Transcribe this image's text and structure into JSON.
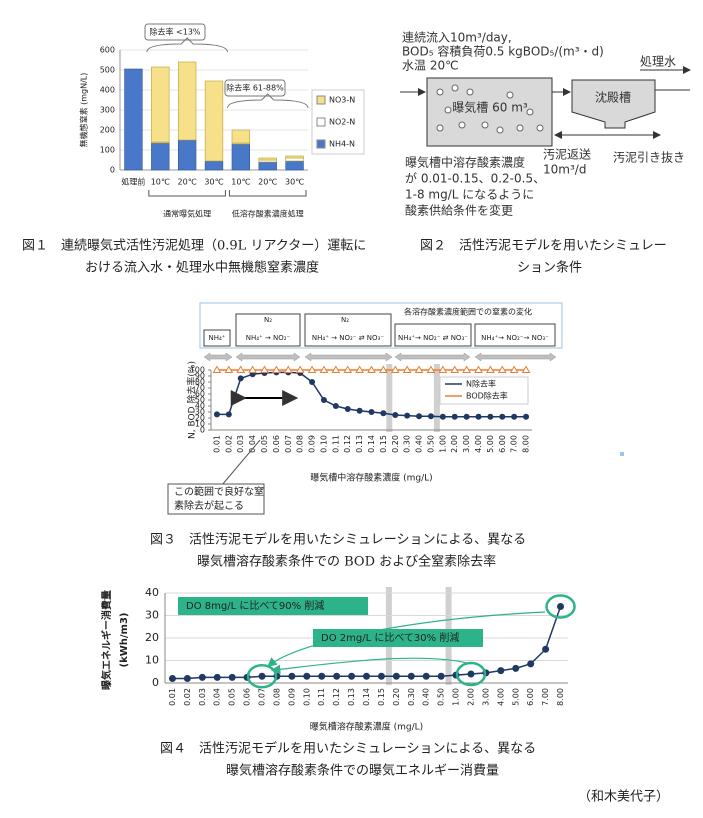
{
  "chart_data": [
    {
      "type": "bar",
      "stacked": true,
      "y_label": "無機態窒素 (mgN/L)",
      "categories": [
        "処理前",
        "10℃",
        "20℃",
        "30℃",
        "10℃",
        "20℃",
        "30℃"
      ],
      "group_labels": [
        "通常曝気処理",
        "低溶存酸素濃度処理"
      ],
      "annotations": [
        "除去率 <13%",
        "除去率 61-88%"
      ],
      "series": [
        {
          "name": "NH4-N",
          "color": "#4a78c8",
          "values": [
            505,
            135,
            150,
            45,
            130,
            40,
            45
          ]
        },
        {
          "name": "NO2-N",
          "color": "#ffffff",
          "values": [
            0,
            5,
            0,
            0,
            5,
            10,
            15
          ]
        },
        {
          "name": "NO3-N",
          "color": "#f6e08a",
          "values": [
            0,
            375,
            390,
            400,
            65,
            10,
            10
          ]
        }
      ],
      "ylim": [
        0,
        600
      ],
      "yticks": [
        0,
        100,
        200,
        300,
        400,
        500,
        600
      ]
    },
    {
      "type": "line",
      "y_label": "N, BOD 除去率(%)",
      "x_label": "曝気槽中溶存酸素濃度 (mg/L)",
      "categories": [
        "0.01",
        "0.02",
        "0.03",
        "0.04",
        "0.05",
        "0.06",
        "0.07",
        "0.08",
        "0.09",
        "0.10",
        "0.11",
        "0.12",
        "0.13",
        "0.14",
        "0.15",
        "0.20",
        "0.30",
        "0.40",
        "0.50",
        "1.00",
        "2.00",
        "3.00",
        "4.00",
        "5.00",
        "6.00",
        "7.00",
        "8.00"
      ],
      "series": [
        {
          "name": "N除去率",
          "color": "#1f3864",
          "marker": "circle",
          "values": [
            26,
            26,
            86,
            93,
            95,
            96,
            96,
            95,
            80,
            50,
            40,
            35,
            32,
            30,
            28,
            25,
            24,
            23,
            23,
            22,
            22,
            22,
            22,
            22,
            22,
            22,
            22
          ]
        },
        {
          "name": "BOD除去率",
          "color": "#ed7d31",
          "marker": "triangle",
          "values": [
            100,
            100,
            100,
            100,
            100,
            100,
            100,
            100,
            100,
            100,
            100,
            100,
            100,
            100,
            100,
            100,
            100,
            100,
            100,
            100,
            100,
            100,
            100,
            100,
            100,
            100,
            100
          ]
        }
      ],
      "ylim": [
        0,
        100
      ],
      "yticks": [
        0,
        10,
        20,
        30,
        40,
        50,
        60,
        70,
        80,
        90,
        100
      ],
      "annotation": [
        "この範囲で良好な窒",
        "素除去が起こる"
      ],
      "header": {
        "title": "各溶存酸素濃度範囲での窒素の変化",
        "boxes": [
          "NH₄⁺",
          "NH₄⁺ → NO₂⁻",
          "NH₄⁺ → NO₂⁻ ⇄ NO₃⁻",
          "NH₄⁺→ NO₂⁻ ⇄ NO₃⁻",
          "NH₄⁺→ NO₂⁻→ NO₃⁻"
        ],
        "n2": "N₂"
      }
    },
    {
      "type": "line",
      "y_label": "曝気エネルギー消費量",
      "y_unit": "(kWh/m3)",
      "x_label": "曝気槽溶存酸素濃度 (mg/L)",
      "categories": [
        "0.01",
        "0.02",
        "0.03",
        "0.04",
        "0.05",
        "0.06",
        "0.07",
        "0.08",
        "0.09",
        "0.10",
        "0.11",
        "0.12",
        "0.13",
        "0.14",
        "0.15",
        "0.20",
        "0.30",
        "0.40",
        "0.50",
        "1.00",
        "2.00",
        "3.00",
        "4.00",
        "5.00",
        "6.00",
        "7.00",
        "8.00"
      ],
      "series": [
        {
          "color": "#1f3864",
          "marker": "circle",
          "values": [
            2,
            2,
            2.5,
            2.5,
            2.5,
            2.5,
            3,
            3,
            3,
            3,
            3,
            3,
            3,
            3,
            3,
            3,
            3,
            3,
            3,
            3.5,
            4,
            4.5,
            5.5,
            6.5,
            8.5,
            15,
            34
          ]
        }
      ],
      "ylim": [
        0,
        40
      ],
      "yticks": [
        0,
        10,
        20,
        30,
        40
      ],
      "annotations": [
        "DO 8mg/L に比べて90% 削減",
        "DO 2mg/L に比べて30% 削減"
      ]
    }
  ],
  "figure2": {
    "lines": [
      "連続流入10m³/day,",
      "BOD₅ 容積負荷0.5 kgBOD₅/(m³・d)",
      "水温 20℃"
    ],
    "effluent": "処理水",
    "tank": "曝気槽 60 m³",
    "clarifier": "沈殿槽",
    "return": "汚泥返送",
    "return_rate": "10m³/d",
    "waste": "汚泥引き抜き",
    "note": [
      "曝気槽中溶存酸素濃度",
      "が 0.01-0.15、0.2-0.5、",
      "1-8 mg/L になるように",
      "酸素供給条件を変更"
    ]
  },
  "captions": {
    "fig1": [
      "図１　連続曝気式活性汚泥処理（0.9L リアクター）運転に",
      "おける流入水・処理水中無機態窒素濃度"
    ],
    "fig2": [
      "図２　活性汚泥モデルを用いたシミュレー",
      "ション条件"
    ],
    "fig3": [
      "図３　活性汚泥モデルを用いたシミュレーションによる、異なる",
      "曝気槽溶存酸素条件での BOD および全窒素除去率"
    ],
    "fig4": [
      "図４　活性汚泥モデルを用いたシミュレーションによる、異なる",
      "曝気槽溶存酸素条件での曝気エネルギー消費量"
    ],
    "author": "（和木美代子）"
  }
}
